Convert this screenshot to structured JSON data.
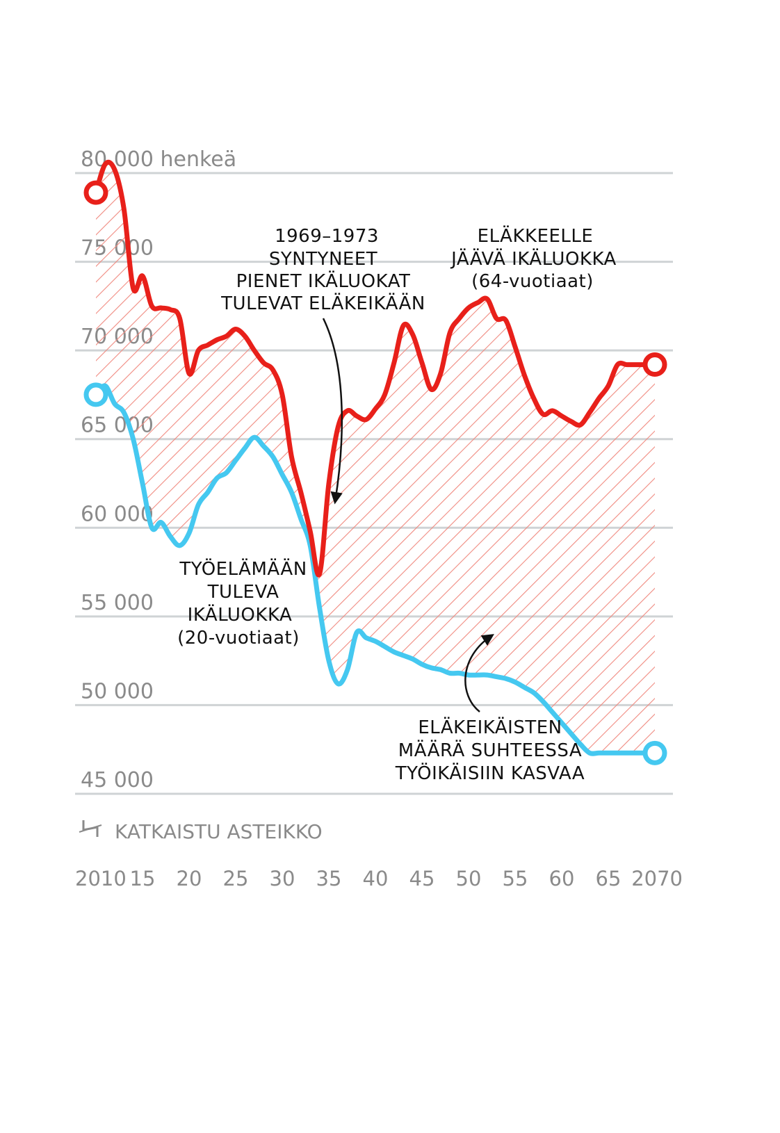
{
  "chart_data": {
    "type": "line",
    "ylabel": "henkeä",
    "ylim": [
      45000,
      80000
    ],
    "yticks": [
      {
        "value": 80000,
        "label": "80 000 henkeä"
      },
      {
        "value": 75000,
        "label": "75 000"
      },
      {
        "value": 70000,
        "label": "70 000"
      },
      {
        "value": 65000,
        "label": "65 000"
      },
      {
        "value": 60000,
        "label": "60 000"
      },
      {
        "value": 55000,
        "label": "55 000"
      },
      {
        "value": 50000,
        "label": "50 000"
      },
      {
        "value": 45000,
        "label": "45 000"
      }
    ],
    "xlim": [
      2010,
      2070
    ],
    "xticks": [
      {
        "value": 2010,
        "label": "2010"
      },
      {
        "value": 2015,
        "label": "15"
      },
      {
        "value": 2020,
        "label": "20"
      },
      {
        "value": 2025,
        "label": "25"
      },
      {
        "value": 2030,
        "label": "30"
      },
      {
        "value": 2035,
        "label": "35"
      },
      {
        "value": 2040,
        "label": "40"
      },
      {
        "value": 2045,
        "label": "45"
      },
      {
        "value": 2050,
        "label": "50"
      },
      {
        "value": 2055,
        "label": "55"
      },
      {
        "value": 2060,
        "label": "60"
      },
      {
        "value": 2065,
        "label": "65"
      },
      {
        "value": 2070,
        "label": "2070"
      }
    ],
    "axis_break_note": "KATKAISTU ASTEIKKO",
    "series": [
      {
        "name": "ELÄKKEELLE JÄÄVÄ IKÄLUOKKA (64-vuotiaat)",
        "color": "#e8201a",
        "x": [
          2010,
          2011,
          2012,
          2013,
          2014,
          2015,
          2016,
          2017,
          2018,
          2019,
          2020,
          2021,
          2022,
          2023,
          2024,
          2025,
          2026,
          2027,
          2028,
          2029,
          2030,
          2031,
          2032,
          2033,
          2034,
          2035,
          2036,
          2037,
          2038,
          2039,
          2040,
          2041,
          2042,
          2043,
          2044,
          2045,
          2046,
          2047,
          2048,
          2049,
          2050,
          2051,
          2052,
          2053,
          2054,
          2055,
          2056,
          2057,
          2058,
          2059,
          2060,
          2061,
          2062,
          2063,
          2064,
          2065,
          2066,
          2067,
          2068,
          2069,
          2070
        ],
        "values": [
          78900,
          80500,
          80200,
          78000,
          73500,
          74200,
          72500,
          72400,
          72300,
          71800,
          68700,
          70000,
          70300,
          70600,
          70800,
          71200,
          70800,
          70000,
          69300,
          68900,
          67500,
          64000,
          62000,
          59800,
          57400,
          62500,
          65700,
          66600,
          66300,
          66100,
          66700,
          67500,
          69300,
          71400,
          70900,
          69300,
          67800,
          68700,
          71000,
          71800,
          72400,
          72700,
          72900,
          71800,
          71700,
          70200,
          68600,
          67300,
          66400,
          66600,
          66300,
          66000,
          65800,
          66500,
          67300,
          68000,
          69200,
          69200,
          69200,
          69200,
          69200
        ]
      },
      {
        "name": "TYÖELÄMÄÄN TULEVA IKÄLUOKKA (20-vuotiaat)",
        "color": "#45c8f0",
        "x": [
          2010,
          2011,
          2012,
          2013,
          2014,
          2015,
          2016,
          2017,
          2018,
          2019,
          2020,
          2021,
          2022,
          2023,
          2024,
          2025,
          2026,
          2027,
          2028,
          2029,
          2030,
          2031,
          2032,
          2033,
          2034,
          2035,
          2036,
          2037,
          2038,
          2039,
          2040,
          2041,
          2042,
          2043,
          2044,
          2045,
          2046,
          2047,
          2048,
          2049,
          2050,
          2051,
          2052,
          2053,
          2054,
          2055,
          2056,
          2057,
          2058,
          2059,
          2060,
          2061,
          2062,
          2063,
          2064,
          2065,
          2066,
          2067,
          2068,
          2069,
          2070
        ],
        "values": [
          67500,
          68000,
          67000,
          66500,
          65000,
          62500,
          60000,
          60300,
          59500,
          59000,
          59700,
          61300,
          62000,
          62800,
          63100,
          63800,
          64500,
          65100,
          64600,
          64000,
          63000,
          62000,
          60500,
          59000,
          55500,
          52500,
          51200,
          52000,
          54100,
          53800,
          53600,
          53300,
          53000,
          52800,
          52600,
          52300,
          52100,
          52000,
          51800,
          51800,
          51700,
          51700,
          51700,
          51600,
          51500,
          51300,
          51000,
          50700,
          50200,
          49600,
          49000,
          48400,
          47800,
          47300,
          47300,
          47300,
          47300,
          47300,
          47300,
          47300,
          47300
        ]
      }
    ],
    "annotations": [
      {
        "lines": [
          "1969–1973",
          "SYNTYNEET",
          "PIENET IKÄLUOKAT",
          "TULEVAT ELÄKEIKÄÄN"
        ]
      },
      {
        "lines": [
          "ELÄKKEELLE",
          "JÄÄVÄ IKÄLUOKKA",
          "(64-vuotiaat)"
        ]
      },
      {
        "lines": [
          "TYÖELÄMÄÄN",
          "TULEVA",
          "IKÄLUOKKA",
          "(20-vuotiaat)"
        ]
      },
      {
        "lines": [
          "ELÄKEIKÄISTEN",
          "MÄÄRÄ SUHTEESSA",
          "TYÖIKÄISIIN KASVAA"
        ]
      }
    ]
  }
}
